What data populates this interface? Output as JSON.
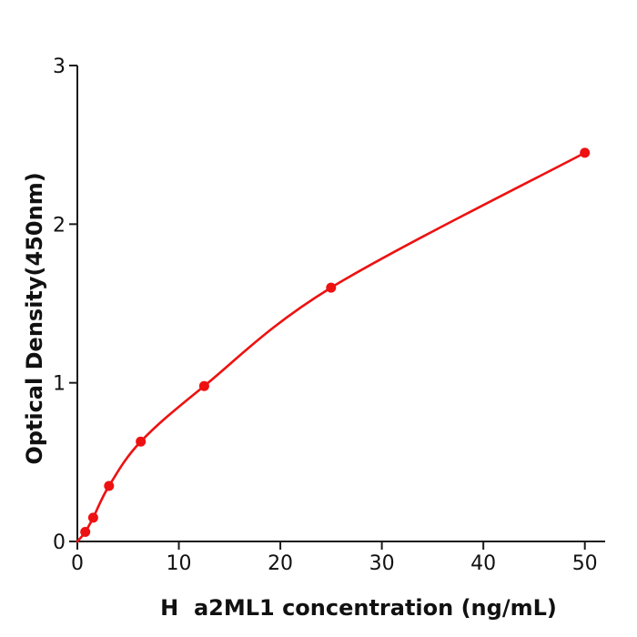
{
  "figure": {
    "background": "#ffffff",
    "title": ""
  },
  "chart_data": {
    "type": "scatter",
    "subtype": "standard-curve-with-fitted-line",
    "title": "",
    "xlabel": "H  a2ML1 concentration (ng/mL)",
    "ylabel": "Optical Density(450nm)",
    "x": [
      0.78,
      1.56,
      3.12,
      6.25,
      12.5,
      25,
      50
    ],
    "y": [
      0.06,
      0.15,
      0.35,
      0.63,
      0.98,
      1.6,
      2.45
    ],
    "fit_curve": {
      "description": "smooth saturating fit through all data points starting at origin",
      "start_point": [
        0,
        0
      ]
    },
    "xticks": [
      0,
      10,
      20,
      30,
      40,
      50
    ],
    "yticks": [
      0,
      1,
      2,
      3
    ],
    "xlim": [
      0,
      52
    ],
    "ylim": [
      0,
      3
    ],
    "grid": false,
    "legend": null,
    "marker_color": "#ee1111",
    "line_color": "#ee1111",
    "axis_color": "#1a1a1a",
    "marker_radius": 5.5,
    "line_width": 2.6
  }
}
